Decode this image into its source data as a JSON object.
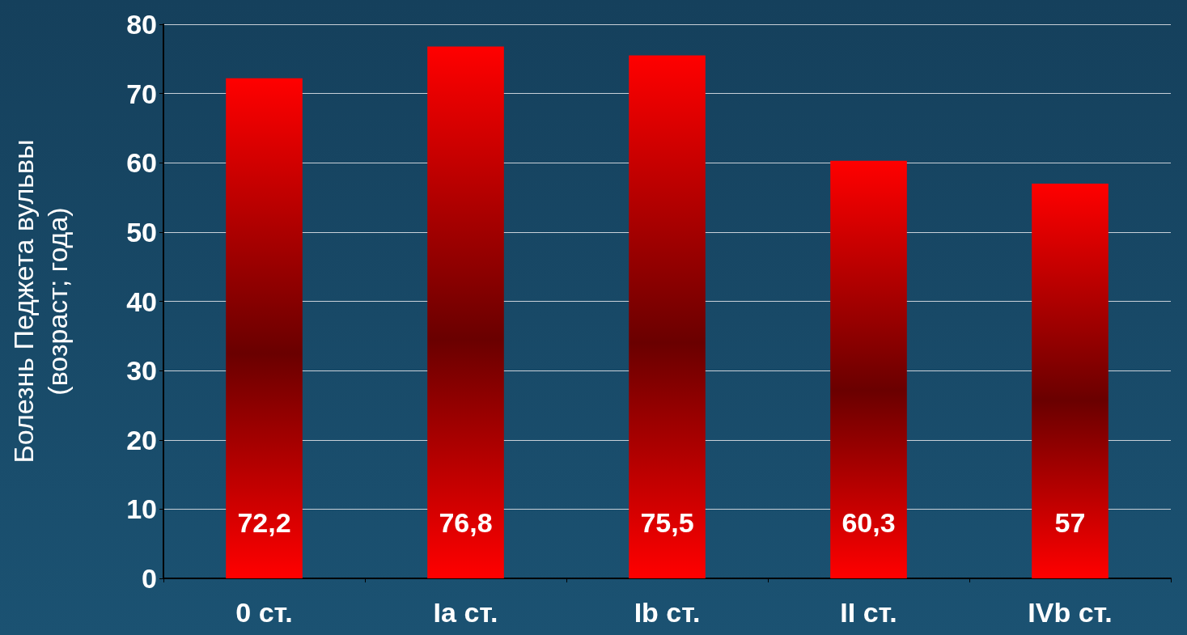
{
  "chart_data": {
    "type": "bar",
    "ylabel": "Болезнь Педжета вульвы\n(возраст; года)",
    "categories": [
      "0 ст.",
      "Ia ст.",
      "Ib ст.",
      "II ст.",
      "IVb ст."
    ],
    "values": [
      72.2,
      76.8,
      75.5,
      60.3,
      57
    ],
    "value_labels": [
      "72,2",
      "76,8",
      "75,5",
      "60,3",
      "57"
    ],
    "color": "#ff0000",
    "ylim": [
      0,
      80
    ],
    "yticks": [
      0,
      10,
      20,
      30,
      40,
      50,
      60,
      70,
      80
    ],
    "grid": "y"
  }
}
